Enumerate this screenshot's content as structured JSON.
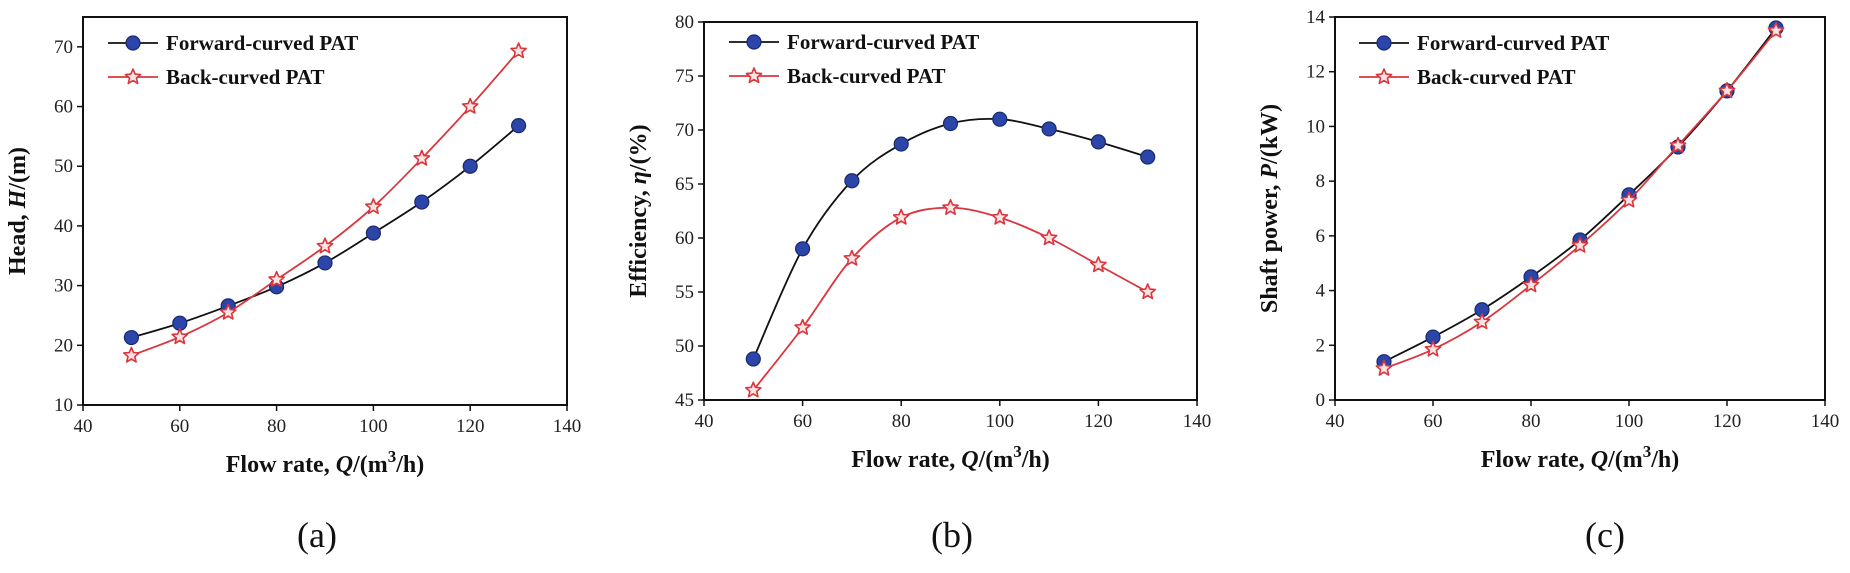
{
  "figure": {
    "panel_labels": [
      "(a)",
      "(b)",
      "(c)"
    ]
  },
  "chart_data": [
    {
      "type": "line",
      "panel": "(a)",
      "xlabel": "Flow rate, Q/(m3/h)",
      "ylabel": "Head,  H/(m)",
      "xlim": [
        40,
        140
      ],
      "ylim": [
        10,
        75
      ],
      "xticks": [
        40,
        60,
        80,
        100,
        120,
        140
      ],
      "yticks": [
        10,
        20,
        30,
        40,
        50,
        60,
        70
      ],
      "x": [
        50,
        60,
        70,
        80,
        90,
        100,
        110,
        120,
        130
      ],
      "legend_position": "top-left",
      "series": [
        {
          "name": "Forward-curved PAT",
          "marker": "circle",
          "line_color": "#111111",
          "marker_color": "#2b45a8",
          "values": [
            21.3,
            23.7,
            26.6,
            29.8,
            33.8,
            38.8,
            44.0,
            50.0,
            56.8
          ]
        },
        {
          "name": "Back-curved PAT",
          "marker": "star",
          "line_color": "#d9363e",
          "marker_color": "#d9363e",
          "values": [
            18.3,
            21.4,
            25.5,
            31.0,
            36.6,
            43.2,
            51.3,
            60.0,
            69.3
          ]
        }
      ]
    },
    {
      "type": "line",
      "panel": "(b)",
      "xlabel": "Flow rate, Q/(m3/h)",
      "ylabel": "Efficiency, η/(%)",
      "xlim": [
        40,
        140
      ],
      "ylim": [
        45,
        80
      ],
      "xticks": [
        40,
        60,
        80,
        100,
        120,
        140
      ],
      "yticks": [
        45,
        50,
        55,
        60,
        65,
        70,
        75,
        80
      ],
      "x": [
        50,
        60,
        70,
        80,
        90,
        100,
        110,
        120,
        130
      ],
      "legend_position": "top-left",
      "series": [
        {
          "name": "Forward-curved PAT",
          "marker": "circle",
          "line_color": "#111111",
          "marker_color": "#2b45a8",
          "values": [
            48.8,
            59.0,
            65.3,
            68.7,
            70.6,
            71.0,
            70.1,
            68.9,
            67.5
          ]
        },
        {
          "name": "Back-curved PAT",
          "marker": "star",
          "line_color": "#d9363e",
          "marker_color": "#d9363e",
          "values": [
            45.9,
            51.7,
            58.1,
            61.9,
            62.8,
            61.9,
            60.0,
            57.5,
            55.0
          ]
        }
      ]
    },
    {
      "type": "line",
      "panel": "(c)",
      "xlabel": "Flow rate, Q/(m3/h)",
      "ylabel": "Shaft power,  P/(kW)",
      "xlim": [
        40,
        140
      ],
      "ylim": [
        0,
        14
      ],
      "xticks": [
        40,
        60,
        80,
        100,
        120,
        140
      ],
      "yticks": [
        0,
        2,
        4,
        6,
        8,
        10,
        12,
        14
      ],
      "x": [
        50,
        60,
        70,
        80,
        90,
        100,
        110,
        120,
        130
      ],
      "legend_position": "top-left",
      "series": [
        {
          "name": "Forward-curved PAT",
          "marker": "circle",
          "line_color": "#111111",
          "marker_color": "#2b45a8",
          "values": [
            1.4,
            2.3,
            3.3,
            4.5,
            5.85,
            7.5,
            9.25,
            11.3,
            13.6
          ]
        },
        {
          "name": "Back-curved PAT",
          "marker": "star",
          "line_color": "#d9363e",
          "marker_color": "#d9363e",
          "values": [
            1.15,
            1.85,
            2.85,
            4.2,
            5.65,
            7.3,
            9.3,
            11.3,
            13.5
          ]
        }
      ]
    }
  ]
}
